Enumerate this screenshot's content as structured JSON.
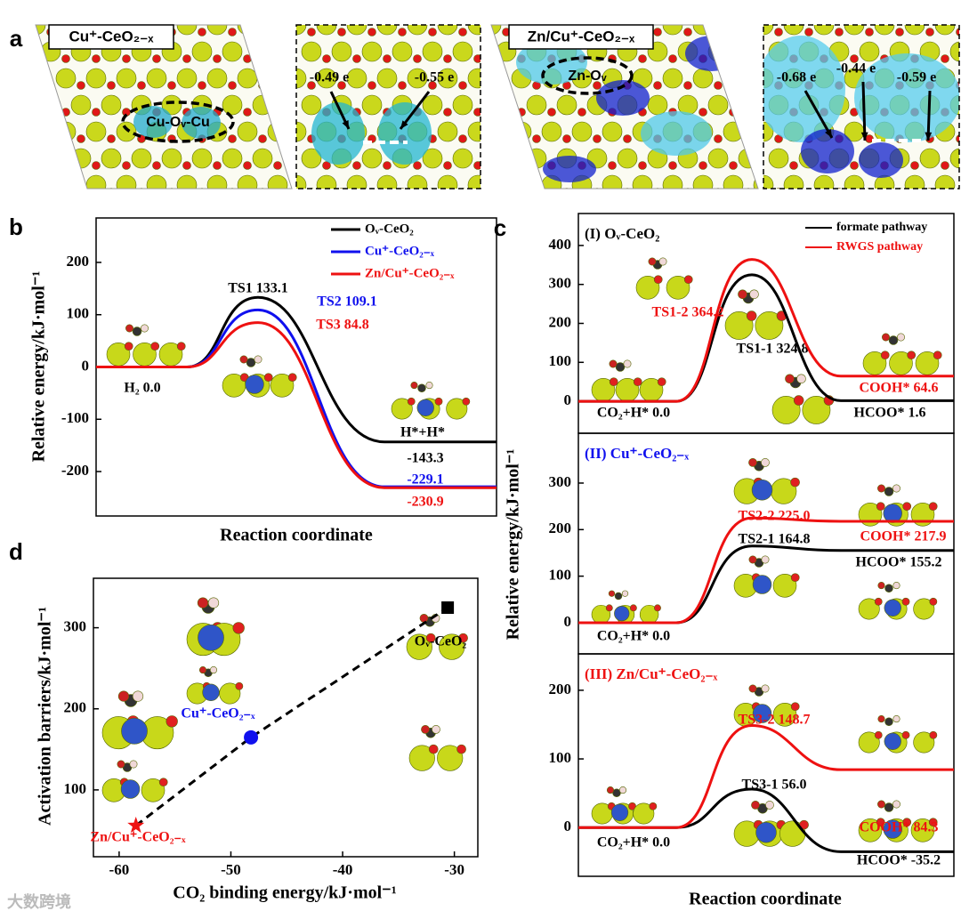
{
  "panel_a": {
    "panel_label": "a",
    "left_title": "Cu⁺-CeO₂₋ₓ",
    "left_site": "Cu-Oᵥ-Cu",
    "left_charges": [
      "-0.49 e",
      "-0.55 e"
    ],
    "right_title": "Zn/Cu⁺-CeO₂₋ₓ",
    "right_site": "Zn-Oᵥ",
    "right_charges": [
      "-0.68 e",
      "-0.44 e",
      "-0.59 e"
    ]
  },
  "watermark": "大数跨境",
  "chart_data": [
    {
      "type": "energy",
      "panel_label": "b",
      "ylabel": "Relative energy/kJ·mol⁻¹",
      "xlabel": "Reaction coordinate",
      "ylim": [
        -285,
        285
      ],
      "yticks": [
        -200,
        -100,
        0,
        100,
        200
      ],
      "annotations": [
        "H*+H*"
      ],
      "legend": "upper right",
      "series": [
        {
          "name": "Oᵥ-CeO₂",
          "color": "#000000",
          "values": [
            0.0,
            133.1,
            -143.3
          ],
          "value_labels": [
            "H₂ 0.0",
            "TS1 133.1",
            "-143.3"
          ]
        },
        {
          "name": "Cu⁺-CeO₂₋ₓ",
          "color": "#1010ee",
          "values": [
            0.0,
            109.1,
            -229.1
          ],
          "value_labels": [
            null,
            "TS2 109.1",
            "-229.1"
          ]
        },
        {
          "name": "Zn/Cu⁺-CeO₂₋ₓ",
          "color": "#ee1111",
          "values": [
            0.0,
            84.8,
            -230.9
          ],
          "value_labels": [
            null,
            "TS3 84.8",
            "-230.9"
          ]
        }
      ]
    },
    {
      "type": "energy",
      "panel_label": "c",
      "title": "(I) Oᵥ-CeO₂",
      "title_color": "#000000",
      "ylabel": "Relative energy/kJ·mol⁻¹",
      "xlabel": "Reaction coordinate",
      "legend": "upper right",
      "ylim": [
        -82,
        482
      ],
      "yticks": [
        0,
        100,
        200,
        300,
        400
      ],
      "series": [
        {
          "name": "formate pathway",
          "color": "#000000",
          "values": [
            0.0,
            324.8,
            1.6
          ],
          "value_labels": [
            "CO₂+H* 0.0",
            "TS1-1 324.8",
            "HCOO* 1.6"
          ]
        },
        {
          "name": "RWGS pathway",
          "color": "#ee1111",
          "values": [
            0.0,
            364.2,
            64.6
          ],
          "value_labels": [
            null,
            "TS1-2 364.2",
            "COOH* 64.6"
          ]
        }
      ]
    },
    {
      "type": "energy",
      "title": "(II) Cu⁺-CeO₂₋ₓ",
      "title_color": "#1010ee",
      "ylim": [
        -67,
        407
      ],
      "yticks": [
        0,
        100,
        200,
        300
      ],
      "series": [
        {
          "color": "#000000",
          "values": [
            0.0,
            164.8,
            155.2
          ],
          "value_labels": [
            "CO₂+H* 0.0",
            "TS2-1 164.8",
            "HCOO* 155.2"
          ]
        },
        {
          "color": "#ee1111",
          "values": [
            0.0,
            225.0,
            217.9
          ],
          "value_labels": [
            null,
            "TS2-2 225.0",
            "COOH* 217.9"
          ]
        }
      ]
    },
    {
      "type": "energy",
      "title": "(III) Zn/Cu⁺-CeO₂₋ₓ",
      "title_color": "#ee1111",
      "ylim": [
        -71,
        253
      ],
      "yticks": [
        0,
        100,
        200
      ],
      "series": [
        {
          "color": "#000000",
          "values": [
            0.0,
            56.0,
            -35.2
          ],
          "value_labels": [
            "CO₂+H* 0.0",
            "TS3-1 56.0",
            "HCOO* -35.2"
          ]
        },
        {
          "color": "#ee1111",
          "values": [
            0.0,
            148.7,
            84.3
          ],
          "value_labels": [
            null,
            "TS3-2 148.7",
            "COOH* 84.3"
          ]
        }
      ]
    },
    {
      "type": "scatter",
      "panel_label": "d",
      "xlabel": "CO₂ binding energy/kJ·mol⁻¹",
      "ylabel": "Activation barriers/kJ·mol⁻¹",
      "xlim": [
        -62.3,
        -27.9
      ],
      "xticks": [
        -60,
        -50,
        -40,
        -30
      ],
      "ylim": [
        17.6,
        361
      ],
      "yticks": [
        100,
        200,
        300
      ],
      "x": [
        -58.5,
        -48.2,
        -30.6
      ],
      "values": [
        56.0,
        164.8,
        324.8
      ],
      "point_labels": [
        "Zn/Cu⁺-CeO₂₋ₓ",
        "Cu⁺-CeO₂₋ₓ",
        "Oᵥ-CeO₂"
      ],
      "colors": [
        "#ee1111",
        "#1010ee",
        "#000000"
      ],
      "markers": [
        "star",
        "circle",
        "square"
      ],
      "trendline": "dashed"
    }
  ]
}
